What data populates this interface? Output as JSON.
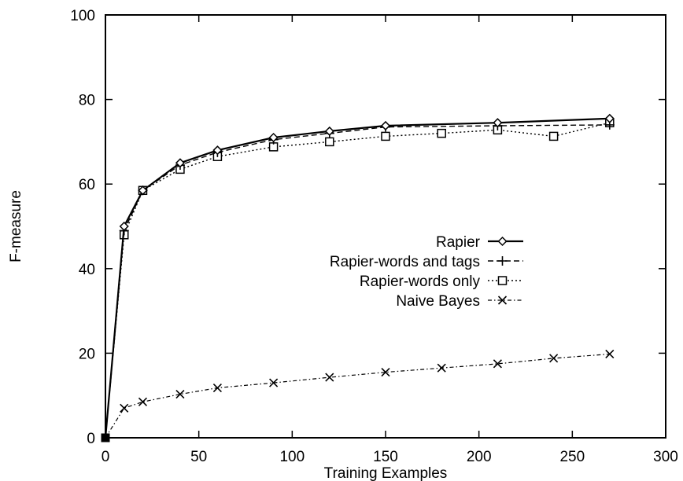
{
  "chart_data": {
    "type": "line",
    "title": "",
    "xlabel": "Training Examples",
    "ylabel": "F-measure",
    "xlim": [
      0,
      300
    ],
    "ylim": [
      0,
      100
    ],
    "xticks": [
      "0",
      "50",
      "100",
      "150",
      "200",
      "250",
      "300"
    ],
    "yticks": [
      "0",
      "20",
      "40",
      "60",
      "80",
      "100"
    ],
    "grid": false,
    "legend_position": "right",
    "series": [
      {
        "name": "Rapier",
        "marker": "diamond",
        "line_style": "solid",
        "x": [
          0,
          10,
          20,
          40,
          60,
          90,
          120,
          150,
          210,
          270
        ],
        "y": [
          0,
          50,
          58.5,
          65,
          68,
          71,
          72.5,
          73.8,
          74.5,
          75.5
        ]
      },
      {
        "name": "Rapier-words and tags",
        "marker": "plus",
        "line_style": "dashed",
        "x": [
          0,
          10,
          20,
          40,
          60,
          90,
          120,
          150,
          210,
          270
        ],
        "y": [
          0,
          49,
          58.5,
          64.5,
          67.5,
          70.5,
          72,
          73.5,
          73.8,
          74
        ]
      },
      {
        "name": "Rapier-words only",
        "marker": "square",
        "line_style": "dotted",
        "x": [
          0,
          10,
          20,
          40,
          60,
          90,
          120,
          150,
          180,
          210,
          240,
          270
        ],
        "y": [
          0,
          48,
          58.5,
          63.5,
          66.5,
          68.8,
          70,
          71.3,
          72,
          72.8,
          71.3,
          74.5
        ]
      },
      {
        "name": "Naive Bayes",
        "marker": "x",
        "line_style": "dashdot",
        "x": [
          0,
          10,
          20,
          40,
          60,
          90,
          120,
          150,
          180,
          210,
          240,
          270
        ],
        "y": [
          0,
          7,
          8.5,
          10.3,
          11.8,
          13,
          14.3,
          15.5,
          16.5,
          17.5,
          18.8,
          19.8
        ]
      }
    ]
  }
}
